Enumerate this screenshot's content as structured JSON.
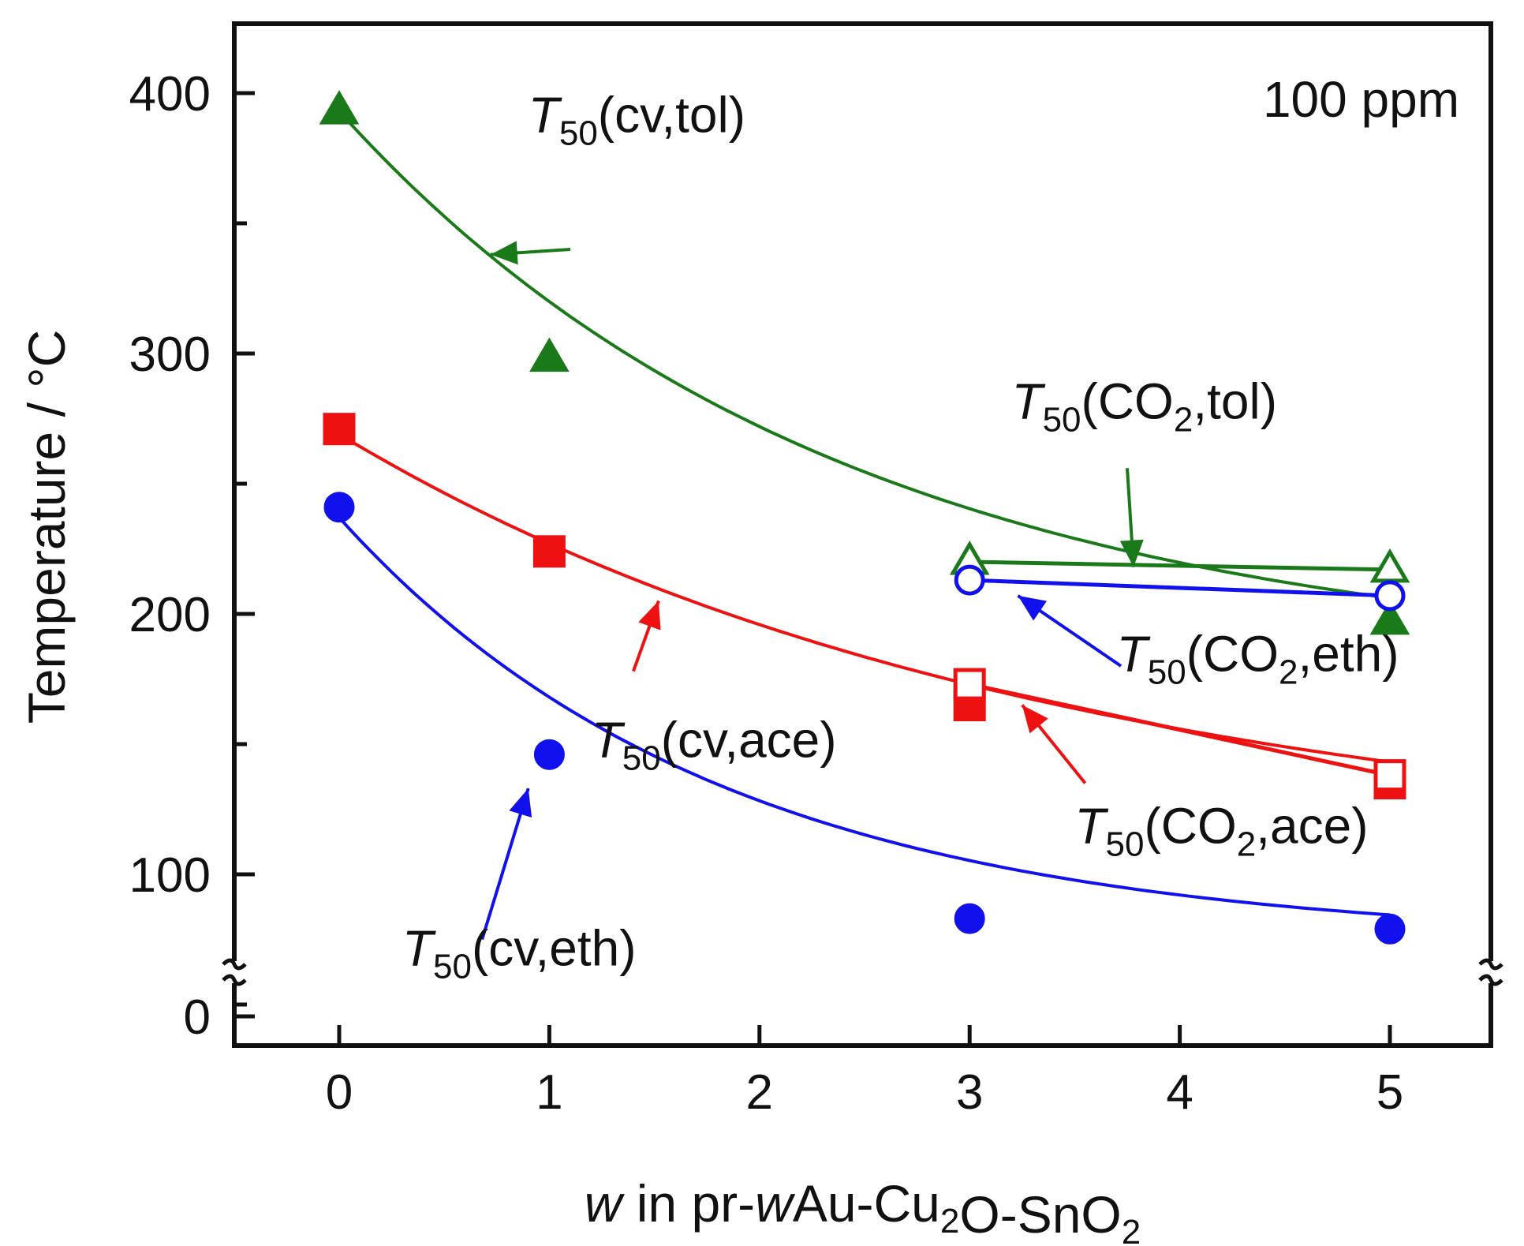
{
  "chart_data": {
    "type": "scatter",
    "title": "",
    "corner_label": "100 ppm",
    "xlabel": {
      "parts": [
        {
          "text": "w",
          "style": "italic"
        },
        {
          "text": " in pr-",
          "style": "normal"
        },
        {
          "text": "w",
          "style": "italic"
        },
        {
          "text": "Au-Cu",
          "style": "normal"
        },
        {
          "text": "2",
          "style": "sub"
        },
        {
          "text": "O-SnO",
          "style": "normal"
        },
        {
          "text": "2",
          "style": "sub"
        }
      ]
    },
    "ylabel": "Temperature / °C",
    "xlim": [
      -0.5,
      5.5
    ],
    "ylim": [
      0,
      425
    ],
    "y_axis_break": {
      "from": 35,
      "to": 68
    },
    "x_ticks": [
      0,
      1,
      2,
      3,
      4,
      5
    ],
    "x_tick_labels": [
      "0",
      "1",
      "2",
      "3",
      "4",
      "5"
    ],
    "y_ticks": [
      0,
      100,
      200,
      300,
      400
    ],
    "y_tick_labels": [
      "0",
      "100",
      "200",
      "300",
      "400"
    ],
    "y_minor_ticks": [
      50,
      150,
      250,
      350
    ],
    "grid": false,
    "series": [
      {
        "name": "T50(cv,tol)",
        "color": "#1a7a1a",
        "marker": "triangle",
        "filled": true,
        "x": [
          0,
          1,
          5
        ],
        "y": [
          393,
          298,
          197
        ],
        "connector": "fit-curve"
      },
      {
        "name": "T50(CO2,tol)",
        "color": "#1a7a1a",
        "marker": "triangle",
        "filled": false,
        "x": [
          3,
          5
        ],
        "y": [
          220,
          217
        ],
        "connector": "straight"
      },
      {
        "name": "T50(cv,ace)",
        "color": "#ee1111",
        "marker": "square",
        "filled": true,
        "x": [
          0,
          1,
          3,
          5
        ],
        "y": [
          271,
          224,
          165,
          135
        ],
        "connector": "fit-curve"
      },
      {
        "name": "T50(CO2,ace)",
        "color": "#ee1111",
        "marker": "square",
        "filled": false,
        "x": [
          3,
          5
        ],
        "y": [
          173,
          138
        ],
        "connector": "straight"
      },
      {
        "name": "T50(cv,eth)",
        "color": "#1111ee",
        "marker": "circle",
        "filled": true,
        "x": [
          0,
          1,
          3,
          5
        ],
        "y": [
          241,
          146,
          83,
          79
        ],
        "connector": "fit-curve"
      },
      {
        "name": "T50(CO2,eth)",
        "color": "#1111ee",
        "marker": "circle",
        "filled": false,
        "x": [
          3,
          5
        ],
        "y": [
          213,
          207
        ],
        "connector": "straight"
      }
    ],
    "fit_curves": [
      {
        "series": "T50(cv,tol)",
        "color": "#1a7a1a",
        "a": 180,
        "b": 213,
        "k": 0.42
      },
      {
        "series": "T50(cv,ace)",
        "color": "#ee1111",
        "a": 107,
        "b": 162,
        "k": 0.3
      },
      {
        "series": "T50(cv,eth)",
        "color": "#1111ee",
        "a": 74,
        "b": 163,
        "k": 0.55
      }
    ],
    "annotations": [
      {
        "series": "T50(cv,tol)",
        "base": "T",
        "sub": "50",
        "rest": "(cv,tol)",
        "color": "#1a7a1a",
        "label_x": 0.9,
        "label_y": 385,
        "arrow_from": [
          1.1,
          340
        ],
        "arrow_to": [
          0.72,
          338
        ]
      },
      {
        "series": "T50(CO2,tol)",
        "base": "T",
        "sub": "50",
        "rest_parts": [
          "(CO",
          "2",
          ",tol)"
        ],
        "color": "#1a7a1a",
        "label_x": 3.2,
        "label_y": 275,
        "arrow_from": [
          3.75,
          256
        ],
        "arrow_to": [
          3.78,
          218
        ]
      },
      {
        "series": "T50(CO2,eth)",
        "base": "T",
        "sub": "50",
        "rest_parts": [
          "(CO",
          "2",
          ",eth)"
        ],
        "color": "#1111ee",
        "label_x": 3.7,
        "label_y": 178,
        "arrow_from": [
          3.72,
          180
        ],
        "arrow_to": [
          3.23,
          207
        ]
      },
      {
        "series": "T50(cv,ace)",
        "base": "T",
        "sub": "50",
        "rest": "(cv,ace)",
        "color": "#ee1111",
        "label_x": 1.2,
        "label_y": 145,
        "arrow_from": [
          1.4,
          178
        ],
        "arrow_to": [
          1.52,
          205
        ]
      },
      {
        "series": "T50(CO2,ace)",
        "base": "T",
        "sub": "50",
        "rest_parts": [
          "(CO",
          "2",
          ",ace)"
        ],
        "color": "#ee1111",
        "label_x": 3.5,
        "label_y": 112,
        "arrow_from": [
          3.55,
          135
        ],
        "arrow_to": [
          3.25,
          165
        ]
      },
      {
        "series": "T50(cv,eth)",
        "base": "T",
        "sub": "50",
        "rest": "(cv,eth)",
        "color": "#1111ee",
        "label_x": 0.3,
        "label_y": 65,
        "arrow_from": [
          0.68,
          75
        ],
        "arrow_to": [
          0.9,
          133
        ]
      }
    ]
  }
}
